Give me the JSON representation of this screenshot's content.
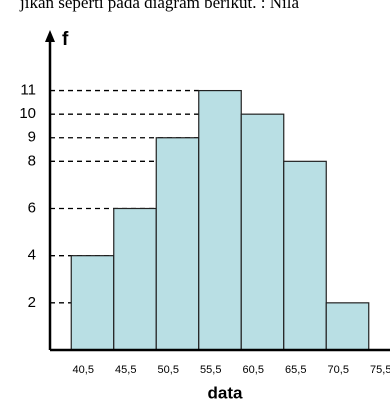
{
  "chart_data": {
    "type": "histogram",
    "caption": "jikan seperti pada diagram berikut. : Nila",
    "ylabel": "f",
    "xlabel": "data",
    "bins": [
      {
        "value": 40.5,
        "label": "40,5"
      },
      {
        "value": 45.5,
        "label": "45,5"
      },
      {
        "value": 50.5,
        "label": "50,5"
      },
      {
        "value": 55.5,
        "label": "55,5"
      },
      {
        "value": 60.5,
        "label": "60,5"
      },
      {
        "value": 65.5,
        "label": "65,5"
      },
      {
        "value": 70.5,
        "label": "70,5"
      },
      {
        "value": 75.5,
        "label": "75,5"
      }
    ],
    "values": [
      4,
      6,
      9,
      11,
      10,
      8,
      2
    ],
    "color": "#b9dfe4",
    "xlim": [
      38,
      78
    ],
    "ylim": [
      0,
      12
    ],
    "yticks": [
      2,
      4,
      6,
      8,
      9,
      10,
      11
    ],
    "grid": true
  }
}
